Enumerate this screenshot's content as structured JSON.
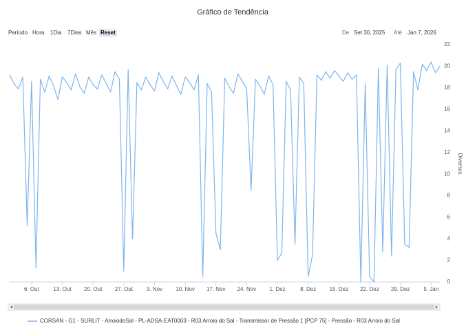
{
  "chart_data": {
    "type": "line",
    "title": "Gráfico de Tendência",
    "y_label": "Diversos",
    "x": [
      "2025-10-01",
      "2025-10-02",
      "2025-10-03",
      "2025-10-04",
      "2025-10-05",
      "2025-10-06",
      "2025-10-07",
      "2025-10-08",
      "2025-10-09",
      "2025-10-10",
      "2025-10-11",
      "2025-10-12",
      "2025-10-13",
      "2025-10-14",
      "2025-10-15",
      "2025-10-16",
      "2025-10-17",
      "2025-10-18",
      "2025-10-19",
      "2025-10-20",
      "2025-10-21",
      "2025-10-22",
      "2025-10-23",
      "2025-10-24",
      "2025-10-25",
      "2025-10-26",
      "2025-10-27",
      "2025-10-28",
      "2025-10-29",
      "2025-10-30",
      "2025-10-31",
      "2025-11-01",
      "2025-11-02",
      "2025-11-03",
      "2025-11-04",
      "2025-11-05",
      "2025-11-06",
      "2025-11-07",
      "2025-11-08",
      "2025-11-09",
      "2025-11-10",
      "2025-11-11",
      "2025-11-12",
      "2025-11-13",
      "2025-11-14",
      "2025-11-15",
      "2025-11-16",
      "2025-11-17",
      "2025-11-18",
      "2025-11-19",
      "2025-11-20",
      "2025-11-21",
      "2025-11-22",
      "2025-11-23",
      "2025-11-24",
      "2025-11-25",
      "2025-11-26",
      "2025-11-27",
      "2025-11-28",
      "2025-11-29",
      "2025-11-30",
      "2025-12-01",
      "2025-12-02",
      "2025-12-03",
      "2025-12-04",
      "2025-12-05",
      "2025-12-06",
      "2025-12-07",
      "2025-12-08",
      "2025-12-09",
      "2025-12-10",
      "2025-12-11",
      "2025-12-12",
      "2025-12-13",
      "2025-12-14",
      "2025-12-15",
      "2025-12-16",
      "2025-12-17",
      "2025-12-18",
      "2025-12-19",
      "2025-12-20",
      "2025-12-21",
      "2025-12-22",
      "2025-12-23",
      "2025-12-24",
      "2025-12-25",
      "2025-12-26",
      "2025-12-27",
      "2025-12-28",
      "2025-12-29",
      "2025-12-30",
      "2025-12-31",
      "2026-01-01",
      "2026-01-02",
      "2026-01-03",
      "2026-01-04",
      "2026-01-05",
      "2026-01-06",
      "2026-01-07"
    ],
    "series": [
      {
        "name": "CORSAN - G1 - SURLIT - ArroiodoSal - PL-ADSA-EAT0003 - R03 Arroio do Sal - Transmissor de Pressão 1 [PCP 75] - Pressão - R03 Arroio do Sal",
        "color": "#7cb5ec",
        "values": [
          19.2,
          18.4,
          17.9,
          19.0,
          5.2,
          18.6,
          1.3,
          18.8,
          17.6,
          19.1,
          18.2,
          16.9,
          19.0,
          18.5,
          17.8,
          19.3,
          18.1,
          17.5,
          19.0,
          18.3,
          17.9,
          19.2,
          18.4,
          17.6,
          19.5,
          18.8,
          1.0,
          19.7,
          4.0,
          18.5,
          17.8,
          19.0,
          18.3,
          17.7,
          19.4,
          18.6,
          17.9,
          19.1,
          18.2,
          17.4,
          19.0,
          18.5,
          17.8,
          19.2,
          0.5,
          18.4,
          17.6,
          4.5,
          3.0,
          18.9,
          18.1,
          17.5,
          19.3,
          18.6,
          17.9,
          8.5,
          18.8,
          18.2,
          17.4,
          19.1,
          18.3,
          2.0,
          2.7,
          18.6,
          17.8,
          3.5,
          19.0,
          18.4,
          0.5,
          2.5,
          19.2,
          18.7,
          19.5,
          18.9,
          19.6,
          19.1,
          18.6,
          19.4,
          18.8,
          19.2,
          0.0,
          18.4,
          0.5,
          0.0,
          19.8,
          2.8,
          20.1,
          2.4,
          19.7,
          20.3,
          3.5,
          3.2,
          19.5,
          17.8,
          20.2,
          19.6,
          20.4,
          19.4,
          20.0
        ]
      }
    ],
    "xlim": [
      "2025-10-01",
      "2026-01-07"
    ],
    "xticks": [
      {
        "value": "2025-10-06",
        "label": "6. Out"
      },
      {
        "value": "2025-10-13",
        "label": "13. Out"
      },
      {
        "value": "2025-10-20",
        "label": "20. Out"
      },
      {
        "value": "2025-10-27",
        "label": "27. Out"
      },
      {
        "value": "2025-11-03",
        "label": "3. Nov"
      },
      {
        "value": "2025-11-10",
        "label": "10. Nov"
      },
      {
        "value": "2025-11-17",
        "label": "17. Nov"
      },
      {
        "value": "2025-11-24",
        "label": "24. Nov"
      },
      {
        "value": "2025-12-01",
        "label": "1. Dez"
      },
      {
        "value": "2025-12-08",
        "label": "8. Dez"
      },
      {
        "value": "2025-12-15",
        "label": "15. Dez"
      },
      {
        "value": "2025-12-22",
        "label": "22. Dez"
      },
      {
        "value": "2025-12-29",
        "label": "29. Dez"
      },
      {
        "value": "2026-01-05",
        "label": "5. Jan"
      }
    ],
    "ylim": [
      0,
      22
    ],
    "yticks": [
      0,
      2,
      4,
      6,
      8,
      10,
      12,
      14,
      16,
      18,
      20,
      22
    ],
    "grid": false
  },
  "range_selector": {
    "buttons": [
      "Período",
      "Hora",
      "1Dia",
      "7Dias",
      "Mês",
      "Reset"
    ],
    "active": 5
  },
  "date_range": {
    "from_label": "De",
    "from": "Set 30, 2025",
    "to_label": "Até",
    "to": "Jan 7, 2026"
  }
}
